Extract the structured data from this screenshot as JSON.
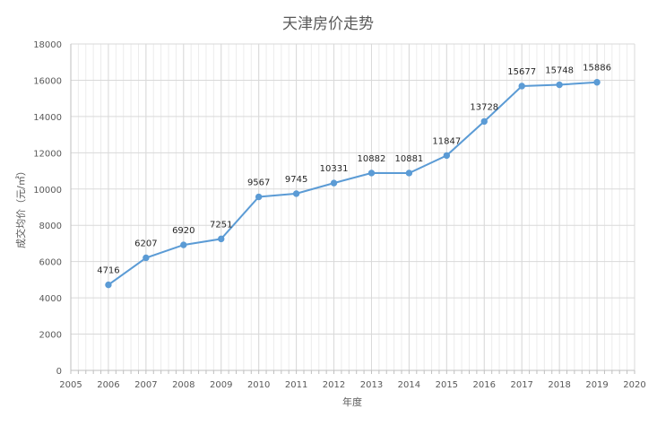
{
  "chart_data": {
    "type": "line",
    "title": "天津房价走势",
    "xlabel": "年度",
    "ylabel": "成交均价（元/㎡）",
    "xlim": [
      2005,
      2020
    ],
    "ylim": [
      0,
      18000
    ],
    "x_ticks": [
      "2005",
      "2006",
      "2007",
      "2008",
      "2009",
      "2010",
      "2011",
      "2012",
      "2013",
      "2014",
      "2015",
      "2016",
      "2017",
      "2018",
      "2019",
      "2020"
    ],
    "y_ticks": [
      "0",
      "2000",
      "4000",
      "6000",
      "8000",
      "10000",
      "12000",
      "14000",
      "16000",
      "18000"
    ],
    "grid": true,
    "line_color": "#5b9bd5",
    "series": [
      {
        "x": [
          2006,
          2007,
          2008,
          2009,
          2010,
          2011,
          2012,
          2013,
          2014,
          2015,
          2016,
          2017,
          2018,
          2019
        ],
        "values": [
          4716,
          6207,
          6920,
          7251,
          9567,
          9745,
          10331,
          10882,
          10881,
          11847,
          13728,
          15677,
          15748,
          15886
        ]
      }
    ]
  }
}
